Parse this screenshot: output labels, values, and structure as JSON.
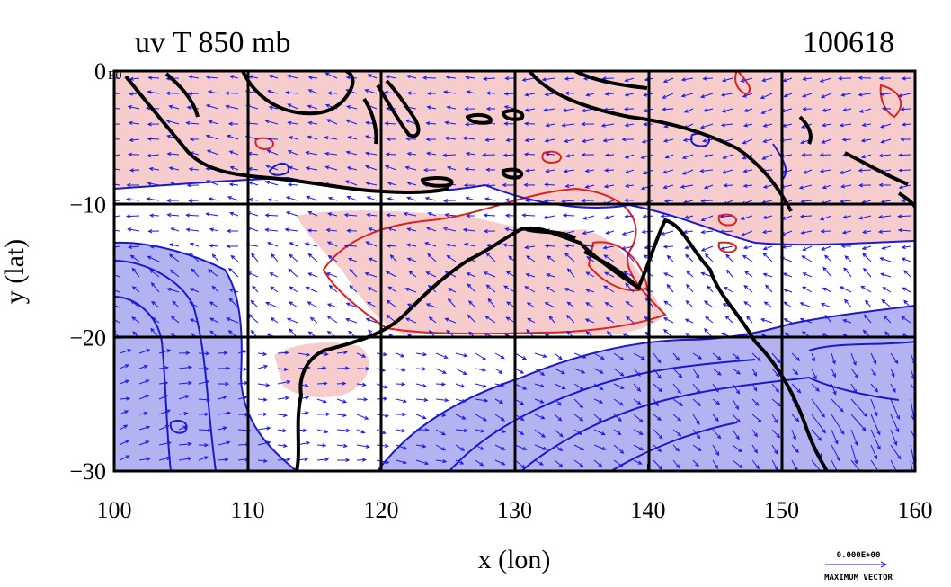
{
  "header": {
    "title": "uv T 850 mb",
    "date": "100618"
  },
  "map": {
    "extent": {
      "lon": [
        100,
        160
      ],
      "lat": [
        -30,
        0
      ]
    },
    "x_ticks": [
      100,
      110,
      120,
      130,
      140,
      150,
      160
    ],
    "y_ticks": [
      {
        "value": 0,
        "label": "0"
      },
      {
        "value": -10,
        "label": "−10"
      },
      {
        "value": -20,
        "label": "−20"
      },
      {
        "value": -30,
        "label": "−30"
      }
    ],
    "corner_label": "E0",
    "xlabel": "x (lon)",
    "ylabel": "y (lat)",
    "colors": {
      "warm_fill": "#f7cccc",
      "cool_fill": "#b3b3f2",
      "neutral_fill": "#ffffff",
      "warm_contour": "#e02020",
      "cool_contour": "#1a1acc",
      "vector": "#1a1aee",
      "coast": "#000000",
      "grid": "#000000"
    }
  },
  "vector_key": {
    "value": "0.000E+00",
    "caption": "MAXIMUM VECTOR"
  }
}
